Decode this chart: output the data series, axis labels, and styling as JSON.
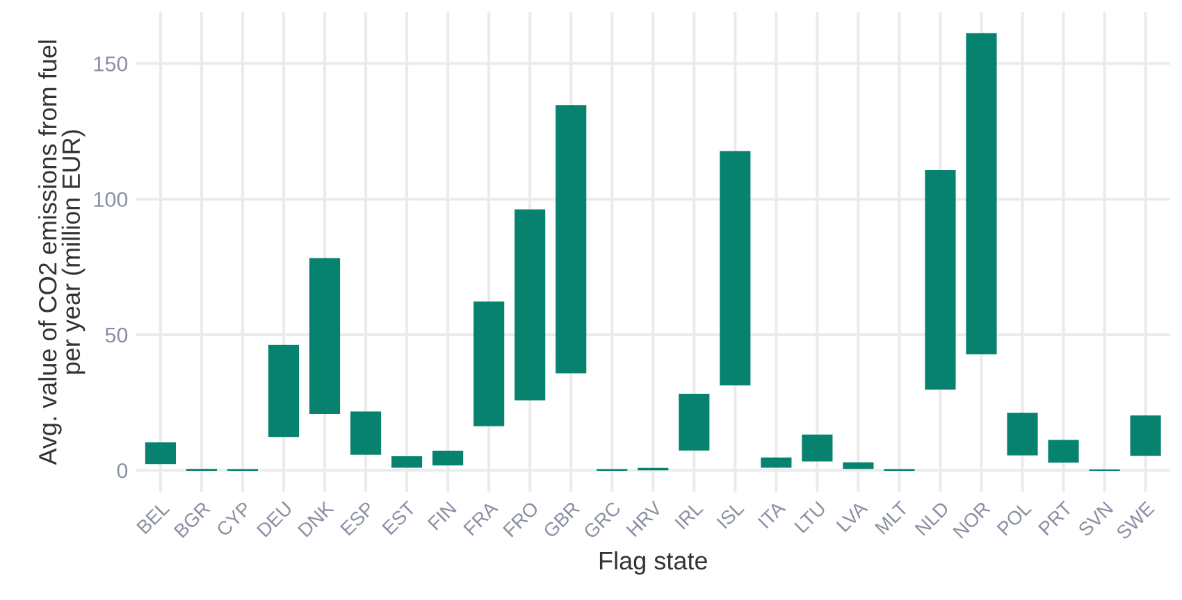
{
  "chart_data": {
    "type": "bar",
    "xlabel": "Flag state",
    "ylabel": "Avg. value of CO2 emissions from fuel\nper year (million EUR)",
    "categories": [
      "BEL",
      "BGR",
      "CYP",
      "DEU",
      "DNK",
      "ESP",
      "EST",
      "FIN",
      "FRA",
      "FRO",
      "GBR",
      "GRC",
      "HRV",
      "IRL",
      "ISL",
      "ITA",
      "LTU",
      "LVA",
      "MLT",
      "NLD",
      "NOR",
      "POL",
      "PRT",
      "SVN",
      "SWE"
    ],
    "base": [
      2.5,
      0,
      0,
      12.5,
      21,
      6,
      1.2,
      2,
      16.5,
      26,
      36,
      0,
      0.2,
      7.5,
      31.5,
      1.2,
      3.5,
      0.7,
      0,
      30,
      43,
      5.7,
      3,
      0,
      5.5
    ],
    "values": [
      7.6,
      0.3,
      0.2,
      33.5,
      57,
      15.5,
      3.8,
      5,
      45.5,
      70,
      98.5,
      0.2,
      0.5,
      20.5,
      86,
      3.3,
      9.5,
      2,
      0.2,
      80.5,
      118,
      15.3,
      8,
      0.1,
      14.5
    ],
    "color": "#07826f",
    "ylim": [
      -8,
      169
    ],
    "yticks": [
      0,
      50,
      100,
      150
    ],
    "grid": true
  }
}
